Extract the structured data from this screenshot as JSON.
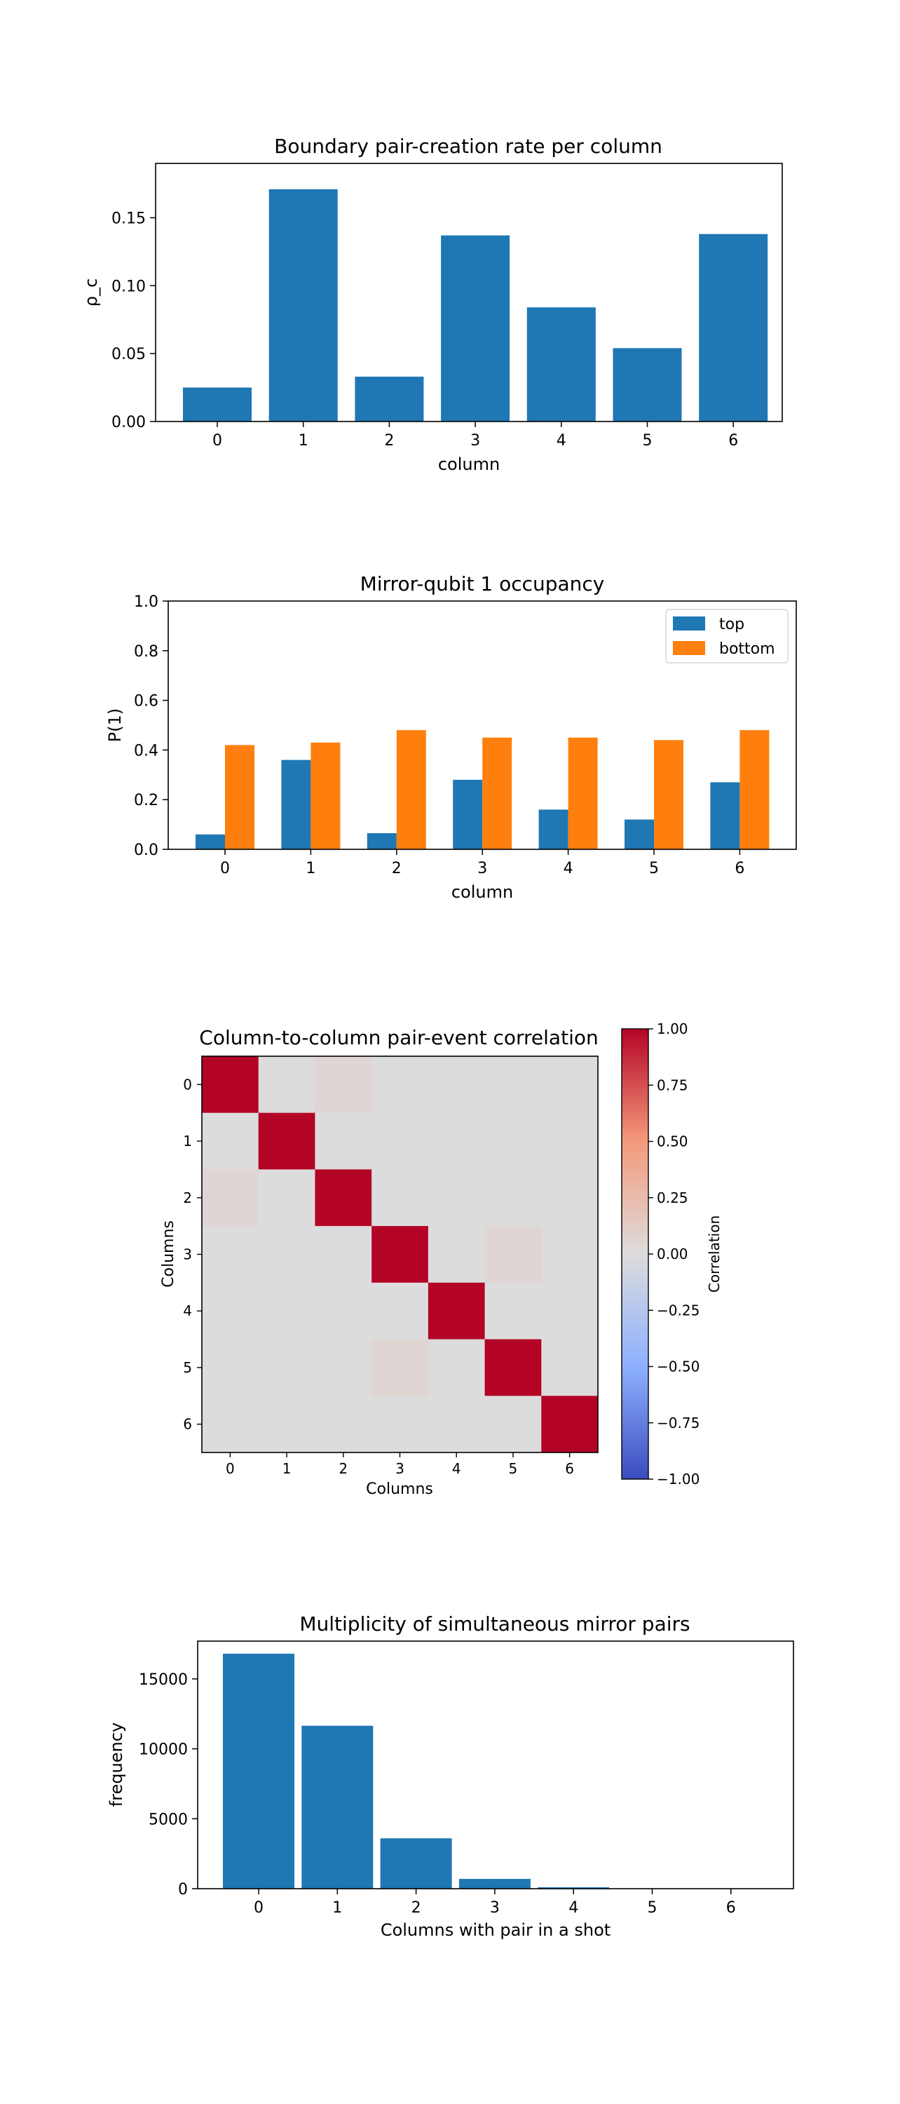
{
  "colors": {
    "top": "#1f77b4",
    "bottom": "#ff7f0e",
    "bar": "#1f77b4",
    "cmap_low": "#3b4cc0",
    "cmap_mid": "#dddcdc",
    "cmap_high": "#b40426"
  },
  "chart_data": [
    {
      "type": "bar",
      "title": "Boundary pair-creation rate per column",
      "xlabel": "column",
      "ylabel": "ρ_c",
      "categories": [
        "0",
        "1",
        "2",
        "3",
        "4",
        "5",
        "6"
      ],
      "values": [
        0.025,
        0.171,
        0.033,
        0.137,
        0.084,
        0.054,
        0.138
      ],
      "ylim": [
        0,
        0.19
      ],
      "yticks": [
        0.0,
        0.05,
        0.1,
        0.15
      ],
      "ytick_labels": [
        "0.00",
        "0.05",
        "0.10",
        "0.15"
      ],
      "grid": false
    },
    {
      "type": "bar",
      "title": "Mirror-qubit 1 occupancy",
      "xlabel": "column",
      "ylabel": "P(1)",
      "categories": [
        "0",
        "1",
        "2",
        "3",
        "4",
        "5",
        "6"
      ],
      "series": [
        {
          "name": "top",
          "values": [
            0.06,
            0.36,
            0.065,
            0.28,
            0.16,
            0.12,
            0.27
          ]
        },
        {
          "name": "bottom",
          "values": [
            0.42,
            0.43,
            0.48,
            0.45,
            0.45,
            0.44,
            0.48
          ]
        }
      ],
      "ylim": [
        0,
        1.0
      ],
      "yticks": [
        0.0,
        0.2,
        0.4,
        0.6,
        0.8,
        1.0
      ],
      "ytick_labels": [
        "0.0",
        "0.2",
        "0.4",
        "0.6",
        "0.8",
        "1.0"
      ],
      "legend_position": "top-right",
      "grid": false
    },
    {
      "type": "heatmap",
      "title": "Column-to-column pair-event correlation",
      "xlabel": "Columns",
      "ylabel": "Columns",
      "x": [
        "0",
        "1",
        "2",
        "3",
        "4",
        "5",
        "6"
      ],
      "y": [
        "0",
        "1",
        "2",
        "3",
        "4",
        "5",
        "6"
      ],
      "values": [
        [
          1.0,
          0.0,
          0.05,
          0.0,
          0.0,
          0.0,
          0.0
        ],
        [
          0.0,
          1.0,
          0.0,
          0.0,
          0.0,
          0.0,
          0.0
        ],
        [
          0.05,
          0.0,
          1.0,
          0.0,
          0.0,
          0.0,
          0.0
        ],
        [
          0.0,
          0.0,
          0.0,
          1.0,
          0.0,
          0.05,
          0.0
        ],
        [
          0.0,
          0.0,
          0.0,
          0.0,
          1.0,
          0.0,
          0.0
        ],
        [
          0.0,
          0.0,
          0.0,
          0.05,
          0.0,
          1.0,
          0.0
        ],
        [
          0.0,
          0.0,
          0.0,
          0.0,
          0.0,
          0.0,
          1.0
        ]
      ],
      "vmin": -1.0,
      "vmax": 1.0,
      "colorbar_label": "Correlation",
      "colorbar_ticks": [
        1.0,
        0.75,
        0.5,
        0.25,
        0.0,
        -0.25,
        -0.5,
        -0.75,
        -1.0
      ],
      "colorbar_tick_labels": [
        "1.00",
        "0.75",
        "0.50",
        "0.25",
        "0.00",
        "−0.25",
        "−0.50",
        "−0.75",
        "−1.00"
      ]
    },
    {
      "type": "bar",
      "title": "Multiplicity of simultaneous mirror pairs",
      "xlabel": "Columns with pair in a shot",
      "ylabel": "frequency",
      "categories": [
        "0",
        "1",
        "2",
        "3",
        "4",
        "5",
        "6"
      ],
      "values": [
        16800,
        11650,
        3600,
        700,
        100,
        10,
        2
      ],
      "ylim": [
        0,
        17700
      ],
      "yticks": [
        0,
        5000,
        10000,
        15000
      ],
      "ytick_labels": [
        "0",
        "5000",
        "10000",
        "15000"
      ],
      "grid": false
    }
  ]
}
